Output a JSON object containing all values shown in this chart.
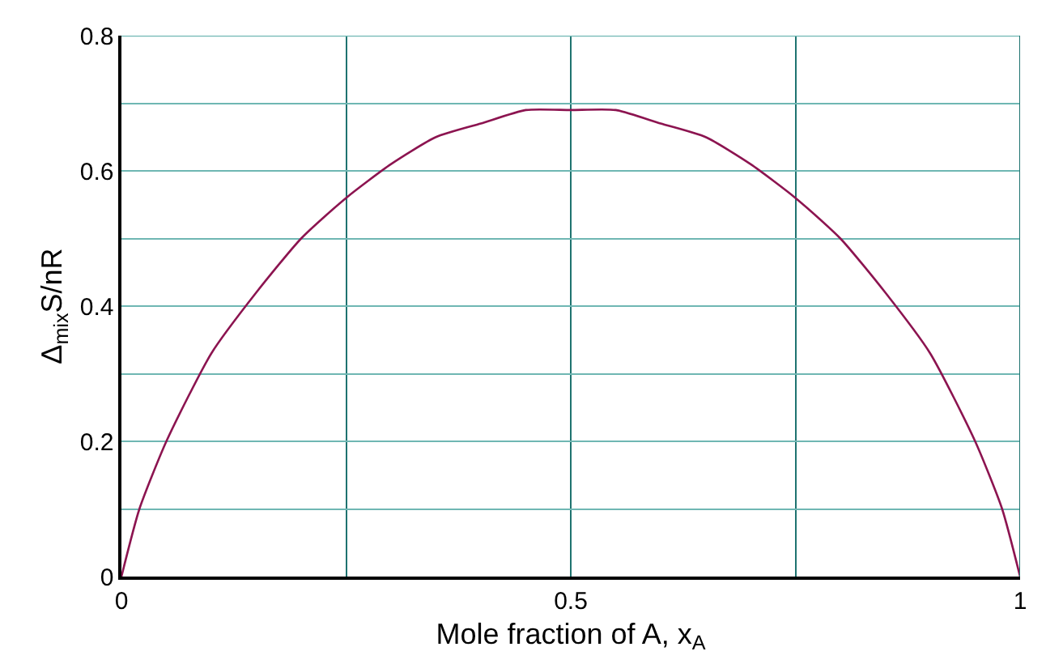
{
  "chart_data": {
    "type": "line",
    "xlabel": "Mole fraction of A, x$_{A}$",
    "ylabel": "Δ$_{mix}$S/nR",
    "x": [
      0,
      0.02,
      0.05,
      0.1,
      0.15,
      0.2,
      0.25,
      0.3,
      0.35,
      0.4,
      0.45,
      0.5,
      0.55,
      0.6,
      0.65,
      0.7,
      0.75,
      0.8,
      0.85,
      0.9,
      0.95,
      0.98,
      1
    ],
    "series": [
      {
        "color": "#8c1450",
        "values": [
          0,
          0.1,
          0.2,
          0.33,
          0.42,
          0.5,
          0.56,
          0.61,
          0.65,
          0.67,
          0.69,
          0.69,
          0.69,
          0.67,
          0.65,
          0.61,
          0.56,
          0.5,
          0.42,
          0.33,
          0.2,
          0.1,
          0
        ]
      }
    ],
    "xlim": [
      0,
      1
    ],
    "xticks": [
      0,
      {
        "value": 0.25,
        "label": null
      },
      0.5,
      {
        "value": 0.75,
        "label": null
      },
      1
    ],
    "ylim": [
      0,
      0.8
    ],
    "yticks": [
      0,
      {
        "value": 0.1,
        "label": null
      },
      0.2,
      {
        "value": 0.3,
        "label": null
      },
      0.4,
      {
        "value": 0.5,
        "label": null
      },
      0.6,
      {
        "value": 0.7,
        "label": null
      },
      0.8
    ],
    "grid": true,
    "marker": "none",
    "line_style": "solid"
  }
}
